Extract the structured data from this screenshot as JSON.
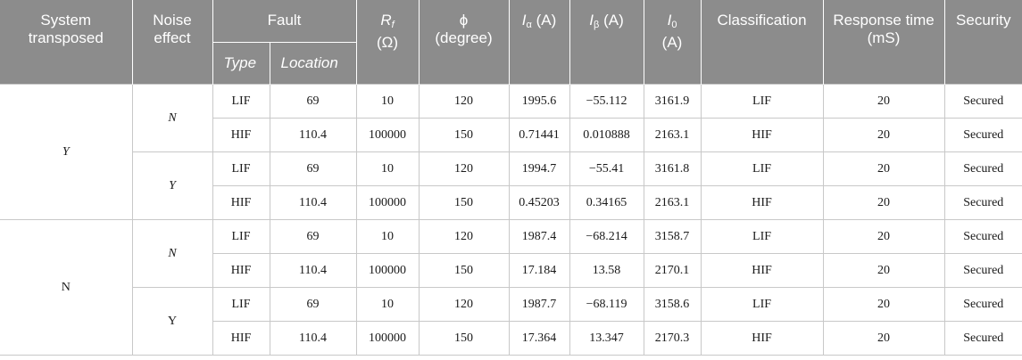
{
  "headers": {
    "system_transposed": "System transposed",
    "noise_effect": "Noise effect",
    "fault": "Fault",
    "type": "Type",
    "location": "Location",
    "rf_symbol": "R",
    "rf_sub": "f",
    "rf_unit": "(Ω)",
    "phi_symbol": "ϕ",
    "phi_unit": "(degree)",
    "ialpha_symbol": "I",
    "ialpha_sub": "α",
    "ialpha_unit": "(A)",
    "ibeta_symbol": "I",
    "ibeta_sub": "β",
    "ibeta_unit": "(A)",
    "i0_symbol": "I",
    "i0_sub": "0",
    "i0_unit": "(A)",
    "classification": "Classification",
    "response_time": "Response time (mS)",
    "security": "Security"
  },
  "groups": [
    {
      "system": "Y",
      "subgroups": [
        {
          "noise": "N",
          "rows": [
            {
              "type": "LIF",
              "location": "69",
              "rf": "10",
              "phi": "120",
              "ialpha": "1995.6",
              "ibeta": "−55.112",
              "i0": "3161.9",
              "classification": "LIF",
              "response": "20",
              "security": "Secured"
            },
            {
              "type": "HIF",
              "location": "110.4",
              "rf": "100000",
              "phi": "150",
              "ialpha": "0.71441",
              "ibeta": "0.010888",
              "i0": "2163.1",
              "classification": "HIF",
              "response": "20",
              "security": "Secured"
            }
          ]
        },
        {
          "noise": "Y",
          "rows": [
            {
              "type": "LIF",
              "location": "69",
              "rf": "10",
              "phi": "120",
              "ialpha": "1994.7",
              "ibeta": "−55.41",
              "i0": "3161.8",
              "classification": "LIF",
              "response": "20",
              "security": "Secured"
            },
            {
              "type": "HIF",
              "location": "110.4",
              "rf": "100000",
              "phi": "150",
              "ialpha": "0.45203",
              "ibeta": "0.34165",
              "i0": "2163.1",
              "classification": "HIF",
              "response": "20",
              "security": "Secured"
            }
          ]
        }
      ]
    },
    {
      "system": "N",
      "subgroups": [
        {
          "noise": "N",
          "rows": [
            {
              "type": "LIF",
              "location": "69",
              "rf": "10",
              "phi": "120",
              "ialpha": "1987.4",
              "ibeta": "−68.214",
              "i0": "3158.7",
              "classification": "LIF",
              "response": "20",
              "security": "Secured"
            },
            {
              "type": "HIF",
              "location": "110.4",
              "rf": "100000",
              "phi": "150",
              "ialpha": "17.184",
              "ibeta": "13.58",
              "i0": "2170.1",
              "classification": "HIF",
              "response": "20",
              "security": "Secured"
            }
          ]
        },
        {
          "noise": "Y",
          "rows": [
            {
              "type": "LIF",
              "location": "69",
              "rf": "10",
              "phi": "120",
              "ialpha": "1987.7",
              "ibeta": "−68.119",
              "i0": "3158.6",
              "classification": "LIF",
              "response": "20",
              "security": "Secured"
            },
            {
              "type": "HIF",
              "location": "110.4",
              "rf": "100000",
              "phi": "150",
              "ialpha": "17.364",
              "ibeta": "13.347",
              "i0": "2170.3",
              "classification": "HIF",
              "response": "20",
              "security": "Secured"
            }
          ]
        }
      ]
    }
  ]
}
